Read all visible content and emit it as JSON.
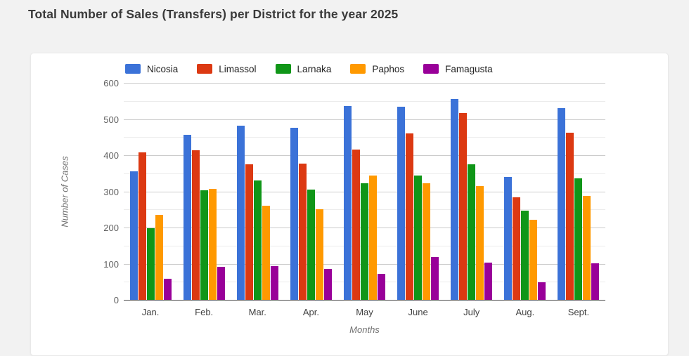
{
  "page": {
    "title": "Total Number of Sales (Transfers) per District for the year 2025"
  },
  "chart_data": {
    "type": "bar",
    "title": "Total Number of Sales (Transfers) per District for the year 2025",
    "xlabel": "Months",
    "ylabel": "Number of Cases",
    "categories": [
      "Jan.",
      "Feb.",
      "Mar.",
      "Apr.",
      "May",
      "June",
      "July",
      "Aug.",
      "Sept."
    ],
    "series": [
      {
        "name": "Nicosia",
        "color": "#3b72d8",
        "values": [
          357,
          459,
          483,
          478,
          537,
          536,
          557,
          341,
          533
        ]
      },
      {
        "name": "Limassol",
        "color": "#dc3912",
        "values": [
          409,
          415,
          377,
          378,
          418,
          463,
          518,
          285,
          464
        ]
      },
      {
        "name": "Larnaka",
        "color": "#109618",
        "values": [
          201,
          305,
          333,
          306,
          324,
          346,
          377,
          248,
          337
        ]
      },
      {
        "name": "Paphos",
        "color": "#ff9900",
        "values": [
          237,
          308,
          263,
          252,
          346,
          325,
          316,
          224,
          289
        ]
      },
      {
        "name": "Famagusta",
        "color": "#990099",
        "values": [
          60,
          93,
          95,
          87,
          73,
          120,
          104,
          50,
          102
        ]
      }
    ],
    "ylim": [
      0,
      600
    ],
    "yticks": [
      0,
      100,
      200,
      300,
      400,
      500,
      600
    ],
    "ytick_step": 100,
    "minor_gridline_step": 50,
    "grid": true,
    "legend_position": "top"
  }
}
